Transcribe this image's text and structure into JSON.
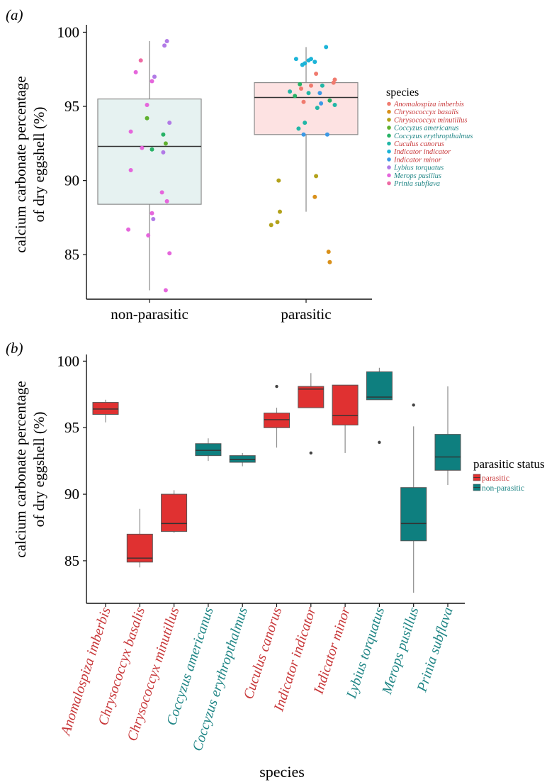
{
  "chart_data": [
    {
      "panel_label": "(a)",
      "type": "box",
      "ylabel_line1": "calcium carbonate percentage",
      "ylabel_line2": "of dry eggshell (%)",
      "ylim": [
        82,
        100.5
      ],
      "yticks": [
        85,
        90,
        95,
        100
      ],
      "categories": [
        "non-parasitic",
        "parasitic"
      ],
      "box_colors": [
        "#e6f2f1",
        "#fde2e2"
      ],
      "boxes": [
        {
          "category": "non-parasitic",
          "whisker_low": 82.6,
          "q1": 88.4,
          "median": 92.3,
          "q3": 95.5,
          "whisker_high": 99.4
        },
        {
          "category": "parasitic",
          "whisker_low": 87.9,
          "q1": 93.1,
          "median": 95.6,
          "q3": 96.6,
          "whisker_high": 99.0
        }
      ],
      "legend": {
        "title": "species",
        "entries": [
          {
            "name": "Anomalospiza imberbis",
            "color": "#f07b6f",
            "text_color": "#c8383a"
          },
          {
            "name": "Chrysococcyx basalis",
            "color": "#d9901a",
            "text_color": "#c8383a"
          },
          {
            "name": "Chrysococcyx minutillus",
            "color": "#b3a21b",
            "text_color": "#c8383a"
          },
          {
            "name": "Coccyzus americanus",
            "color": "#5fb12f",
            "text_color": "#1f8585"
          },
          {
            "name": "Coccyzus erythropthalmus",
            "color": "#27b266",
            "text_color": "#1f8585"
          },
          {
            "name": "Cuculus canorus",
            "color": "#21b6a6",
            "text_color": "#c8383a"
          },
          {
            "name": "Indicator indicator",
            "color": "#1cb4d8",
            "text_color": "#c8383a"
          },
          {
            "name": "Indicator minor",
            "color": "#3c99e6",
            "text_color": "#c8383a"
          },
          {
            "name": "Lybius torquatus",
            "color": "#b17ae6",
            "text_color": "#1f8585"
          },
          {
            "name": "Merops pusillus",
            "color": "#e566dc",
            "text_color": "#1f8585"
          },
          {
            "name": "Prinia subflava",
            "color": "#ee6aa4",
            "text_color": "#1f8585"
          }
        ]
      },
      "points": [
        {
          "category": "non-parasitic",
          "dx": 0.28,
          "y": 99.4,
          "species": 8
        },
        {
          "category": "non-parasitic",
          "dx": 0.24,
          "y": 99.1,
          "species": 8
        },
        {
          "category": "non-parasitic",
          "dx": -0.14,
          "y": 98.1,
          "species": 10
        },
        {
          "category": "non-parasitic",
          "dx": -0.22,
          "y": 97.3,
          "species": 9
        },
        {
          "category": "non-parasitic",
          "dx": 0.08,
          "y": 97.0,
          "species": 8
        },
        {
          "category": "non-parasitic",
          "dx": 0.04,
          "y": 96.7,
          "species": 9
        },
        {
          "category": "non-parasitic",
          "dx": -0.04,
          "y": 95.1,
          "species": 9
        },
        {
          "category": "non-parasitic",
          "dx": 0.32,
          "y": 93.9,
          "species": 8
        },
        {
          "category": "non-parasitic",
          "dx": -0.04,
          "y": 94.2,
          "species": 3
        },
        {
          "category": "non-parasitic",
          "dx": -0.3,
          "y": 93.3,
          "species": 9
        },
        {
          "category": "non-parasitic",
          "dx": 0.22,
          "y": 93.1,
          "species": 4
        },
        {
          "category": "non-parasitic",
          "dx": 0.26,
          "y": 92.5,
          "species": 3
        },
        {
          "category": "non-parasitic",
          "dx": -0.12,
          "y": 92.2,
          "species": 9
        },
        {
          "category": "non-parasitic",
          "dx": 0.04,
          "y": 92.1,
          "species": 4
        },
        {
          "category": "non-parasitic",
          "dx": 0.22,
          "y": 91.9,
          "species": 8
        },
        {
          "category": "non-parasitic",
          "dx": -0.3,
          "y": 90.7,
          "species": 9
        },
        {
          "category": "non-parasitic",
          "dx": 0.2,
          "y": 89.2,
          "species": 9
        },
        {
          "category": "non-parasitic",
          "dx": 0.28,
          "y": 88.6,
          "species": 9
        },
        {
          "category": "non-parasitic",
          "dx": 0.04,
          "y": 87.8,
          "species": 9
        },
        {
          "category": "non-parasitic",
          "dx": 0.06,
          "y": 87.4,
          "species": 8
        },
        {
          "category": "non-parasitic",
          "dx": -0.34,
          "y": 86.7,
          "species": 9
        },
        {
          "category": "non-parasitic",
          "dx": -0.02,
          "y": 86.3,
          "species": 9
        },
        {
          "category": "non-parasitic",
          "dx": 0.32,
          "y": 85.1,
          "species": 9
        },
        {
          "category": "non-parasitic",
          "dx": 0.26,
          "y": 82.6,
          "species": 9
        },
        {
          "category": "parasitic",
          "dx": 0.32,
          "y": 99.0,
          "species": 6
        },
        {
          "category": "parasitic",
          "dx": -0.16,
          "y": 98.2,
          "species": 6
        },
        {
          "category": "parasitic",
          "dx": 0.08,
          "y": 98.2,
          "species": 6
        },
        {
          "category": "parasitic",
          "dx": 0.14,
          "y": 98.0,
          "species": 6
        },
        {
          "category": "parasitic",
          "dx": -0.02,
          "y": 97.9,
          "species": 6
        },
        {
          "category": "parasitic",
          "dx": 0.04,
          "y": 98.1,
          "species": 6
        },
        {
          "category": "parasitic",
          "dx": -0.06,
          "y": 97.8,
          "species": 6
        },
        {
          "category": "parasitic",
          "dx": 0.16,
          "y": 97.2,
          "species": 0
        },
        {
          "category": "parasitic",
          "dx": 0.46,
          "y": 96.8,
          "species": 0
        },
        {
          "category": "parasitic",
          "dx": 0.44,
          "y": 96.6,
          "species": 0
        },
        {
          "category": "parasitic",
          "dx": -0.1,
          "y": 96.5,
          "species": 4
        },
        {
          "category": "parasitic",
          "dx": 0.08,
          "y": 96.4,
          "species": 0
        },
        {
          "category": "parasitic",
          "dx": 0.26,
          "y": 96.4,
          "species": 5
        },
        {
          "category": "parasitic",
          "dx": -0.08,
          "y": 96.2,
          "species": 0
        },
        {
          "category": "parasitic",
          "dx": -0.26,
          "y": 96.0,
          "species": 5
        },
        {
          "category": "parasitic",
          "dx": 0.04,
          "y": 95.9,
          "species": 5
        },
        {
          "category": "parasitic",
          "dx": 0.22,
          "y": 95.9,
          "species": 7
        },
        {
          "category": "parasitic",
          "dx": -0.18,
          "y": 95.7,
          "species": 4
        },
        {
          "category": "parasitic",
          "dx": 0.38,
          "y": 95.4,
          "species": 4
        },
        {
          "category": "parasitic",
          "dx": -0.04,
          "y": 95.3,
          "species": 0
        },
        {
          "category": "parasitic",
          "dx": 0.46,
          "y": 95.1,
          "species": 5
        },
        {
          "category": "parasitic",
          "dx": 0.24,
          "y": 95.2,
          "species": 7
        },
        {
          "category": "parasitic",
          "dx": 0.18,
          "y": 94.9,
          "species": 5
        },
        {
          "category": "parasitic",
          "dx": -0.02,
          "y": 93.9,
          "species": 5
        },
        {
          "category": "parasitic",
          "dx": -0.12,
          "y": 93.5,
          "species": 5
        },
        {
          "category": "parasitic",
          "dx": -0.04,
          "y": 93.1,
          "species": 7
        },
        {
          "category": "parasitic",
          "dx": 0.34,
          "y": 93.1,
          "species": 7
        },
        {
          "category": "parasitic",
          "dx": -0.44,
          "y": 90.0,
          "species": 2
        },
        {
          "category": "parasitic",
          "dx": 0.16,
          "y": 90.3,
          "species": 2
        },
        {
          "category": "parasitic",
          "dx": 0.14,
          "y": 88.9,
          "species": 1
        },
        {
          "category": "parasitic",
          "dx": -0.42,
          "y": 87.9,
          "species": 2
        },
        {
          "category": "parasitic",
          "dx": -0.46,
          "y": 87.2,
          "species": 2
        },
        {
          "category": "parasitic",
          "dx": -0.56,
          "y": 87.0,
          "species": 2
        },
        {
          "category": "parasitic",
          "dx": 0.36,
          "y": 85.2,
          "species": 1
        },
        {
          "category": "parasitic",
          "dx": 0.38,
          "y": 84.5,
          "species": 1
        }
      ]
    },
    {
      "panel_label": "(b)",
      "type": "box",
      "ylabel_line1": "calcium carbonate percentage",
      "ylabel_line2": "of dry eggshell (%)",
      "xlabel": "species",
      "ylim": [
        81.8,
        100.5
      ],
      "yticks": [
        85,
        90,
        95,
        100
      ],
      "categories": [
        "Anomalospiza imberbis",
        "Chrysococcyx basalis",
        "Chrysococcyx minutillus",
        "Coccyzus americanus",
        "Coccyzus erythropthalmus",
        "Cuculus canorus",
        "Indicator indicator",
        "Indicator minor",
        "Lybius torquatus",
        "Merops pusillus",
        "Prinia subflava"
      ],
      "legend": {
        "title": "parasitic status",
        "entries": [
          {
            "name": "parasitic",
            "color": "#e03131",
            "text_color": "#c8383a"
          },
          {
            "name": "non-parasitic",
            "color": "#0e7f7f",
            "text_color": "#1f8585"
          }
        ]
      },
      "boxes": [
        {
          "category": "Anomalospiza imberbis",
          "status": "parasitic",
          "whisker_low": 95.4,
          "q1": 96.0,
          "median": 96.4,
          "q3": 96.9,
          "whisker_high": 97.1
        },
        {
          "category": "Chrysococcyx basalis",
          "status": "parasitic",
          "whisker_low": 84.5,
          "q1": 84.9,
          "median": 85.2,
          "q3": 87.0,
          "whisker_high": 88.9
        },
        {
          "category": "Chrysococcyx minutillus",
          "status": "parasitic",
          "whisker_low": 87.1,
          "q1": 87.2,
          "median": 87.8,
          "q3": 90.0,
          "whisker_high": 90.3
        },
        {
          "category": "Coccyzus americanus",
          "status": "non-parasitic",
          "whisker_low": 92.5,
          "q1": 92.9,
          "median": 93.3,
          "q3": 93.8,
          "whisker_high": 94.2
        },
        {
          "category": "Coccyzus erythropthalmus",
          "status": "non-parasitic",
          "whisker_low": 92.1,
          "q1": 92.4,
          "median": 92.6,
          "q3": 92.9,
          "whisker_high": 93.1
        },
        {
          "category": "Cuculus canorus",
          "status": "parasitic",
          "whisker_low": 93.5,
          "q1": 95.0,
          "median": 95.6,
          "q3": 96.1,
          "whisker_high": 96.5,
          "outliers": [
            98.1
          ]
        },
        {
          "category": "Indicator indicator",
          "status": "parasitic",
          "whisker_low": 96.5,
          "q1": 96.5,
          "median": 97.9,
          "q3": 98.1,
          "whisker_high": 99.1,
          "outliers": [
            93.1
          ]
        },
        {
          "category": "Indicator minor",
          "status": "parasitic",
          "whisker_low": 93.1,
          "q1": 95.2,
          "median": 95.9,
          "q3": 98.2,
          "whisker_high": 98.2
        },
        {
          "category": "Lybius torquatus",
          "status": "non-parasitic",
          "whisker_low": 97.1,
          "q1": 97.1,
          "median": 97.3,
          "q3": 99.2,
          "whisker_high": 99.5,
          "outliers": [
            93.9
          ]
        },
        {
          "category": "Merops pusillus",
          "status": "non-parasitic",
          "whisker_low": 82.6,
          "q1": 86.5,
          "median": 87.8,
          "q3": 90.5,
          "whisker_high": 95.1,
          "outliers": [
            96.7
          ]
        },
        {
          "category": "Prinia subflava",
          "status": "non-parasitic",
          "whisker_low": 90.7,
          "q1": 91.8,
          "median": 92.8,
          "q3": 94.5,
          "whisker_high": 98.1
        }
      ]
    }
  ]
}
